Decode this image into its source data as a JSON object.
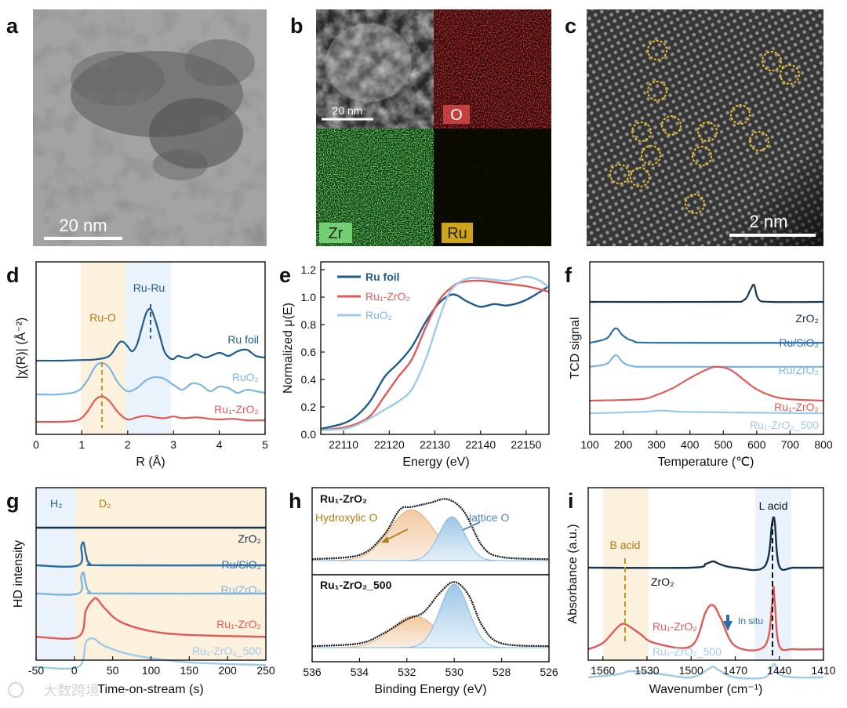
{
  "figure": {
    "panel_letters": [
      "a",
      "b",
      "c",
      "d",
      "e",
      "f",
      "g",
      "h",
      "i"
    ],
    "a": {
      "scalebar": "20 nm"
    },
    "b": {
      "scalebar": "20 nm",
      "maps": [
        "O",
        "Zr",
        "Ru"
      ]
    },
    "c": {
      "scalebar": "2 nm"
    },
    "d": {
      "xlabel": "R (Å)",
      "ylabel": "|χ(R)| (Å⁻²)",
      "annot_ruo": "Ru-O",
      "annot_ruru": "Ru-Ru",
      "curves": [
        "Ru foil",
        "RuO₂",
        "Ru₁-ZrO₂"
      ],
      "xticks": [
        "0",
        "1",
        "2",
        "3",
        "4",
        "5"
      ]
    },
    "e": {
      "xlabel": "Energy (eV)",
      "ylabel": "Normalized μ(E)",
      "legend": [
        "Ru foil",
        "Ru₁-ZrO₂",
        "RuO₂"
      ],
      "xticks": [
        "22110",
        "22120",
        "22130",
        "22140",
        "22150"
      ],
      "yticks": [
        "0.0",
        "0.2",
        "0.4",
        "0.6",
        "0.8",
        "1.0",
        "1.2"
      ]
    },
    "f": {
      "xlabel": "Temperature (℃)",
      "ylabel": "TCD signal",
      "curves": [
        "ZrO₂",
        "Ru/SiO₂",
        "Ru/ZrO₂",
        "Ru₁-ZrO₂",
        "Ru₁-ZrO₂_500"
      ],
      "xticks": [
        "100",
        "200",
        "300",
        "400",
        "500",
        "600",
        "700",
        "800"
      ]
    },
    "g": {
      "xlabel": "Time-on-stream (s)",
      "ylabel": "HD intensity",
      "region_h2": "H₂",
      "region_d2": "D₂",
      "curves": [
        "ZrO₂",
        "Ru/SiO₂",
        "Ru/ZrO₂",
        "Ru₁-ZrO₂",
        "Ru₁-ZrO₂_500"
      ],
      "xticks": [
        "-50",
        "0",
        "50",
        "100",
        "150",
        "200",
        "250"
      ]
    },
    "h": {
      "xlabel": "Binding Energy (eV)",
      "top": "Ru₁-ZrO₂",
      "bottom": "Ru₁-ZrO₂_500",
      "annot_hyd": "Hydroxylic O",
      "annot_lat": "lattice O",
      "xticks": [
        "536",
        "534",
        "532",
        "530",
        "528",
        "526"
      ]
    },
    "i": {
      "xlabel": "Wavenumber (cm⁻¹)",
      "ylabel": "Absorbance (a.u.)",
      "annot_b": "B acid",
      "annot_l": "L acid",
      "annot_insitu": "In situ",
      "curves": [
        "ZrO₂",
        "Ru₁-ZrO₂",
        "Ru₁-ZrO₂_500"
      ],
      "xticks": [
        "1560",
        "1530",
        "1500",
        "1470",
        "1440",
        "1410"
      ]
    },
    "watermark": "大数跨境"
  },
  "chart_data": [
    {
      "panel": "d",
      "type": "line",
      "xlabel": "R (Å)",
      "ylabel": "|χ(R)| (Å⁻²)",
      "xlim": [
        0,
        5
      ],
      "series": [
        {
          "name": "Ru foil",
          "color": "#1f5c8b",
          "x": [
            0,
            0.5,
            1.0,
            1.3,
            1.6,
            1.8,
            1.9,
            2.0,
            2.1,
            2.2,
            2.3,
            2.4,
            2.5,
            2.6,
            2.7,
            2.8,
            2.9,
            3.0,
            3.1,
            3.3,
            3.5,
            3.7,
            4.0,
            4.2,
            4.4,
            4.6,
            4.8,
            5.0
          ],
          "y": [
            0,
            0,
            0.02,
            0.04,
            0.15,
            0.55,
            0.6,
            0.45,
            0.3,
            0.5,
            1.0,
            1.5,
            1.65,
            1.3,
            0.8,
            0.3,
            0.1,
            0.05,
            0.15,
            0.08,
            0.2,
            0.1,
            0.25,
            0.15,
            0.3,
            0.35,
            0.15,
            0.1
          ]
        },
        {
          "name": "RuO₂",
          "color": "#7fb6e0",
          "x": [
            0,
            0.5,
            0.9,
            1.1,
            1.3,
            1.45,
            1.6,
            1.8,
            2.0,
            2.2,
            2.4,
            2.6,
            2.8,
            3.0,
            3.2,
            3.4,
            3.6,
            3.8,
            4.0,
            4.2,
            4.4,
            4.6,
            4.8,
            5.0
          ],
          "y": [
            0,
            0,
            0.1,
            0.4,
            0.9,
            1.0,
            0.85,
            0.35,
            0.1,
            0.2,
            0.45,
            0.55,
            0.5,
            0.3,
            0.15,
            0.35,
            0.3,
            0.1,
            0.25,
            0.2,
            0.05,
            0.15,
            0.1,
            0.05
          ]
        },
        {
          "name": "Ru₁-ZrO₂",
          "color": "#e05a5a",
          "x": [
            0,
            0.5,
            0.9,
            1.1,
            1.3,
            1.45,
            1.6,
            1.8,
            2.0,
            2.2,
            2.4,
            2.6,
            2.8,
            3.0,
            3.2,
            3.5,
            3.8,
            4.0,
            4.3,
            4.6,
            5.0
          ],
          "y": [
            0,
            0,
            0.05,
            0.3,
            0.75,
            0.85,
            0.7,
            0.3,
            0.08,
            0.15,
            0.2,
            0.15,
            0.12,
            0.18,
            0.12,
            0.15,
            0.1,
            0.08,
            0.1,
            0.05,
            0.05
          ]
        }
      ]
    },
    {
      "panel": "e",
      "type": "line",
      "xlabel": "Energy (eV)",
      "ylabel": "Normalized μ(E)",
      "xlim": [
        22105,
        22155
      ],
      "ylim": [
        0,
        1.2
      ],
      "series": [
        {
          "name": "Ru foil",
          "color": "#1f5c8b",
          "x": [
            22105,
            22110,
            22113,
            22116,
            22119,
            22122,
            22125,
            22128,
            22131,
            22134,
            22137,
            22140,
            22143,
            22146,
            22150,
            22155
          ],
          "y": [
            0.04,
            0.08,
            0.14,
            0.25,
            0.42,
            0.52,
            0.64,
            0.82,
            0.96,
            1.02,
            0.97,
            0.93,
            0.95,
            0.94,
            0.98,
            1.08
          ]
        },
        {
          "name": "Ru₁-ZrO₂",
          "color": "#e05a5a",
          "x": [
            22105,
            22110,
            22113,
            22116,
            22119,
            22122,
            22125,
            22128,
            22131,
            22134,
            22136,
            22140,
            22145,
            22150,
            22155
          ],
          "y": [
            0.03,
            0.05,
            0.08,
            0.14,
            0.28,
            0.42,
            0.55,
            0.78,
            0.98,
            1.08,
            1.11,
            1.12,
            1.1,
            1.08,
            1.04
          ]
        },
        {
          "name": "RuO₂",
          "color": "#9fcbea",
          "x": [
            22105,
            22110,
            22113,
            22116,
            22119,
            22122,
            22125,
            22128,
            22131,
            22133,
            22135,
            22138,
            22142,
            22146,
            22150,
            22153,
            22155
          ],
          "y": [
            0.03,
            0.04,
            0.07,
            0.12,
            0.18,
            0.24,
            0.33,
            0.55,
            0.85,
            1.02,
            1.1,
            1.14,
            1.13,
            1.12,
            1.15,
            1.12,
            1.07
          ]
        }
      ]
    },
    {
      "panel": "f",
      "type": "line",
      "xlabel": "Temperature (℃)",
      "ylabel": "TCD signal",
      "xlim": [
        100,
        800
      ],
      "series": [
        {
          "name": "ZrO₂",
          "color": "#15344d",
          "x": [
            100,
            500,
            560,
            580,
            592,
            605,
            640,
            800
          ],
          "y": [
            5.0,
            5.0,
            5.05,
            5.4,
            5.6,
            5.1,
            5.0,
            5.0
          ]
        },
        {
          "name": "Ru/SiO₂",
          "color": "#2a6fa8",
          "x": [
            100,
            150,
            170,
            182,
            200,
            230,
            300,
            800
          ],
          "y": [
            3.55,
            3.7,
            4.0,
            4.05,
            3.8,
            3.62,
            3.55,
            3.55
          ]
        },
        {
          "name": "Ru/ZrO₂",
          "color": "#7fb6e0",
          "x": [
            100,
            150,
            170,
            182,
            200,
            230,
            300,
            800
          ],
          "y": [
            2.7,
            2.8,
            3.05,
            3.1,
            2.85,
            2.72,
            2.7,
            2.7
          ]
        },
        {
          "name": "Ru₁-ZrO₂",
          "color": "#e05a5a",
          "x": [
            100,
            250,
            300,
            350,
            400,
            450,
            480,
            520,
            560,
            600,
            650,
            700,
            800
          ],
          "y": [
            1.5,
            1.55,
            1.7,
            1.95,
            2.3,
            2.6,
            2.7,
            2.6,
            2.25,
            1.9,
            1.65,
            1.55,
            1.5
          ]
        },
        {
          "name": "Ru₁-ZrO₂_500",
          "color": "#9fcbea",
          "x": [
            100,
            250,
            320,
            400,
            800
          ],
          "y": [
            1.05,
            1.1,
            1.15,
            1.1,
            1.05
          ]
        }
      ]
    },
    {
      "panel": "g",
      "type": "line",
      "xlabel": "Time-on-stream (s)",
      "ylabel": "HD intensity",
      "xlim": [
        -50,
        250
      ],
      "series": [
        {
          "name": "ZrO₂",
          "color": "#15344d",
          "x": [
            -50,
            250
          ],
          "y": [
            5.0,
            5.0
          ]
        },
        {
          "name": "Ru/SiO₂",
          "color": "#2a6fa8",
          "x": [
            -50,
            5,
            9,
            12,
            15,
            20,
            40,
            250
          ],
          "y": [
            4.0,
            4.0,
            4.5,
            4.6,
            4.3,
            4.05,
            4.0,
            4.0
          ]
        },
        {
          "name": "Ru/ZrO₂",
          "color": "#7fb6e0",
          "x": [
            -50,
            5,
            9,
            12,
            15,
            20,
            40,
            250
          ],
          "y": [
            3.25,
            3.25,
            3.7,
            3.8,
            3.5,
            3.3,
            3.25,
            3.25
          ]
        },
        {
          "name": "Ru₁-ZrO₂",
          "color": "#e05a5a",
          "x": [
            -50,
            5,
            15,
            25,
            30,
            40,
            60,
            100,
            150,
            250
          ],
          "y": [
            2.1,
            2.1,
            2.8,
            3.1,
            3.1,
            2.85,
            2.5,
            2.25,
            2.15,
            2.1
          ]
        },
        {
          "name": "Ru₁-ZrO₂_500",
          "color": "#9fcbea",
          "x": [
            -50,
            5,
            15,
            25,
            40,
            80,
            150,
            250
          ],
          "y": [
            1.3,
            1.3,
            1.95,
            2.05,
            1.85,
            1.6,
            1.42,
            1.35
          ]
        }
      ]
    },
    {
      "panel": "h",
      "type": "area",
      "xlabel": "Binding Energy (eV)",
      "xlim": [
        536,
        526
      ],
      "series": [
        {
          "name": "Ru₁-ZrO₂ envelope",
          "color": "#111111",
          "x": [
            536,
            534,
            533,
            532.3,
            531.8,
            531.0,
            530.3,
            529.6,
            528.8,
            528,
            526
          ],
          "y": [
            0.02,
            0.08,
            0.35,
            0.72,
            0.76,
            0.82,
            0.87,
            0.7,
            0.2,
            0.05,
            0.02
          ]
        },
        {
          "name": "Ru₁-ZrO₂_500 envelope",
          "color": "#111111",
          "x": [
            536,
            534,
            533,
            532,
            531.3,
            530.6,
            530.0,
            529.4,
            528.8,
            528,
            526
          ],
          "y": [
            0.02,
            0.06,
            0.2,
            0.4,
            0.5,
            0.78,
            0.93,
            0.75,
            0.3,
            0.06,
            0.02
          ]
        }
      ]
    },
    {
      "panel": "i",
      "type": "line",
      "xlabel": "Wavenumber (cm⁻¹)",
      "ylabel": "Absorbance (a.u.)",
      "xlim": [
        1570,
        1410
      ],
      "series": [
        {
          "name": "ZrO₂",
          "color": "#15344d",
          "x": [
            1570,
            1500,
            1490,
            1485,
            1480,
            1470,
            1450,
            1445,
            1444,
            1443,
            1440,
            1430,
            1410
          ],
          "y": [
            3.2,
            3.2,
            3.26,
            3.3,
            3.25,
            3.2,
            3.22,
            3.9,
            4.0,
            3.9,
            3.22,
            3.2,
            3.2
          ]
        },
        {
          "name": "Ru₁-ZrO₂",
          "color": "#e05a5a",
          "x": [
            1570,
            1560,
            1550,
            1545,
            1535,
            1525,
            1500,
            1490,
            1485,
            1480,
            1470,
            1450,
            1445,
            1444,
            1443,
            1440,
            1430,
            1410
          ],
          "y": [
            1.9,
            2.0,
            2.25,
            2.3,
            2.15,
            2.0,
            1.95,
            2.5,
            2.6,
            2.4,
            1.95,
            1.95,
            2.6,
            2.9,
            2.6,
            1.95,
            1.9,
            1.9
          ]
        },
        {
          "name": "Ru₁-ZrO₂_500",
          "color": "#9fcbea",
          "x": [
            1570,
            1550,
            1540,
            1520,
            1500,
            1487,
            1485,
            1480,
            1470,
            1450,
            1445,
            1443,
            1440,
            1430,
            1410
          ],
          "y": [
            1.45,
            1.5,
            1.55,
            1.5,
            1.45,
            1.6,
            1.62,
            1.55,
            1.45,
            1.45,
            1.62,
            1.66,
            1.5,
            1.45,
            1.45
          ]
        }
      ]
    }
  ]
}
